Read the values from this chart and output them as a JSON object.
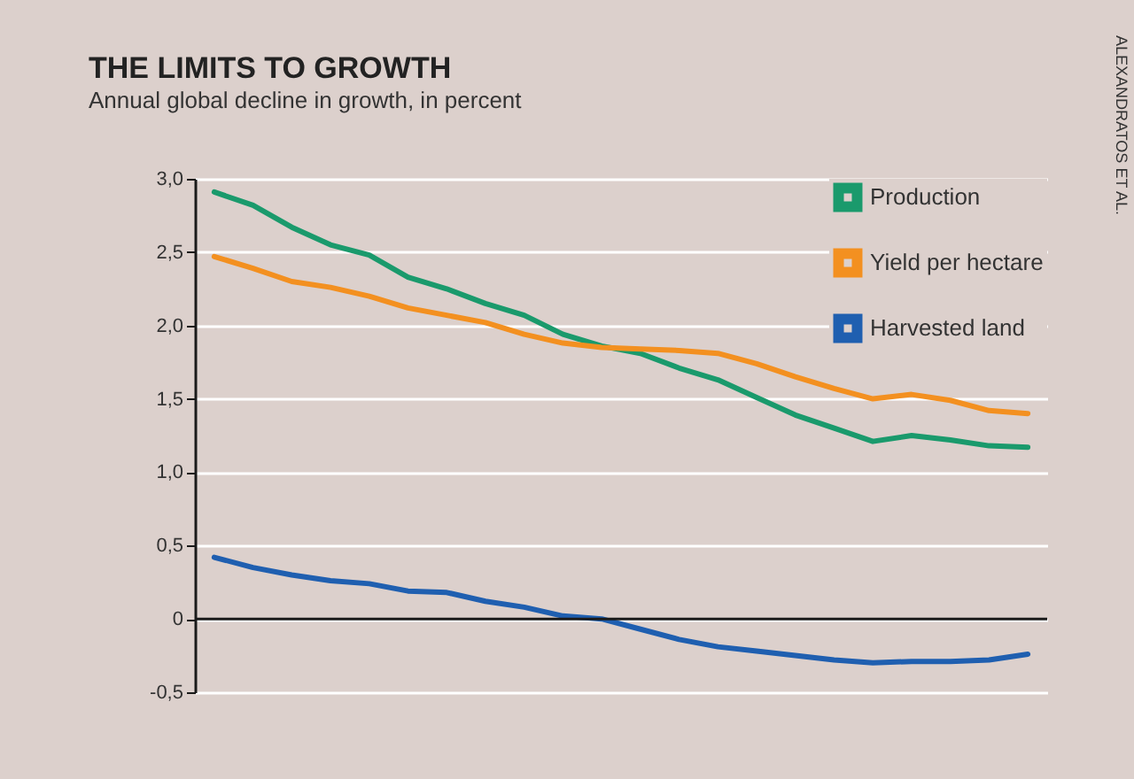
{
  "chart_data": {
    "type": "line",
    "title": "THE LIMITS TO GROWTH",
    "subtitle": "Annual global decline in growth, in percent",
    "annotations": [
      "ALEXANDRATOS ET AL."
    ],
    "categories": [
      null,
      null,
      null,
      null,
      null,
      null,
      null,
      null,
      null,
      null,
      null,
      null,
      null,
      null,
      null,
      null,
      null,
      null,
      null,
      null,
      null,
      null
    ],
    "ylim": [
      -0.5,
      3.0
    ],
    "yticks": [
      {
        "value": -0.5,
        "label": "-0,5"
      },
      {
        "value": 0,
        "label": "0"
      },
      {
        "value": 0.5,
        "label": "0,5"
      },
      {
        "value": 1.0,
        "label": "1,0"
      },
      {
        "value": 1.5,
        "label": "1,5"
      },
      {
        "value": 2.0,
        "label": "2,0"
      },
      {
        "value": 2.5,
        "label": "2,5"
      },
      {
        "value": 3.0,
        "label": "3,0"
      }
    ],
    "grid": "y",
    "legend": "top right",
    "ref_lines": [
      {
        "axis": "y",
        "value": 0,
        "label": null,
        "color": "#1a1a1a"
      }
    ],
    "series": [
      {
        "name": "Production",
        "color": "#1a9a6c",
        "values": [
          2.91,
          2.82,
          2.67,
          2.55,
          2.48,
          2.33,
          2.25,
          2.15,
          2.07,
          1.94,
          1.86,
          1.81,
          1.71,
          1.63,
          1.51,
          1.39,
          1.3,
          1.21,
          1.25,
          1.22,
          1.18,
          1.17
        ]
      },
      {
        "name": "Yield per hectare",
        "color": "#f39020",
        "values": [
          2.47,
          2.39,
          2.3,
          2.26,
          2.2,
          2.12,
          2.07,
          2.02,
          1.94,
          1.88,
          1.85,
          1.84,
          1.83,
          1.81,
          1.74,
          1.65,
          1.57,
          1.5,
          1.53,
          1.49,
          1.42,
          1.4
        ]
      },
      {
        "name": "Harvested land",
        "color": "#1f5fb0",
        "values": [
          0.42,
          0.35,
          0.3,
          0.26,
          0.24,
          0.19,
          0.18,
          0.12,
          0.08,
          0.02,
          0.0,
          -0.07,
          -0.14,
          -0.19,
          -0.22,
          -0.25,
          -0.28,
          -0.3,
          -0.29,
          -0.29,
          -0.28,
          -0.24
        ]
      }
    ]
  }
}
